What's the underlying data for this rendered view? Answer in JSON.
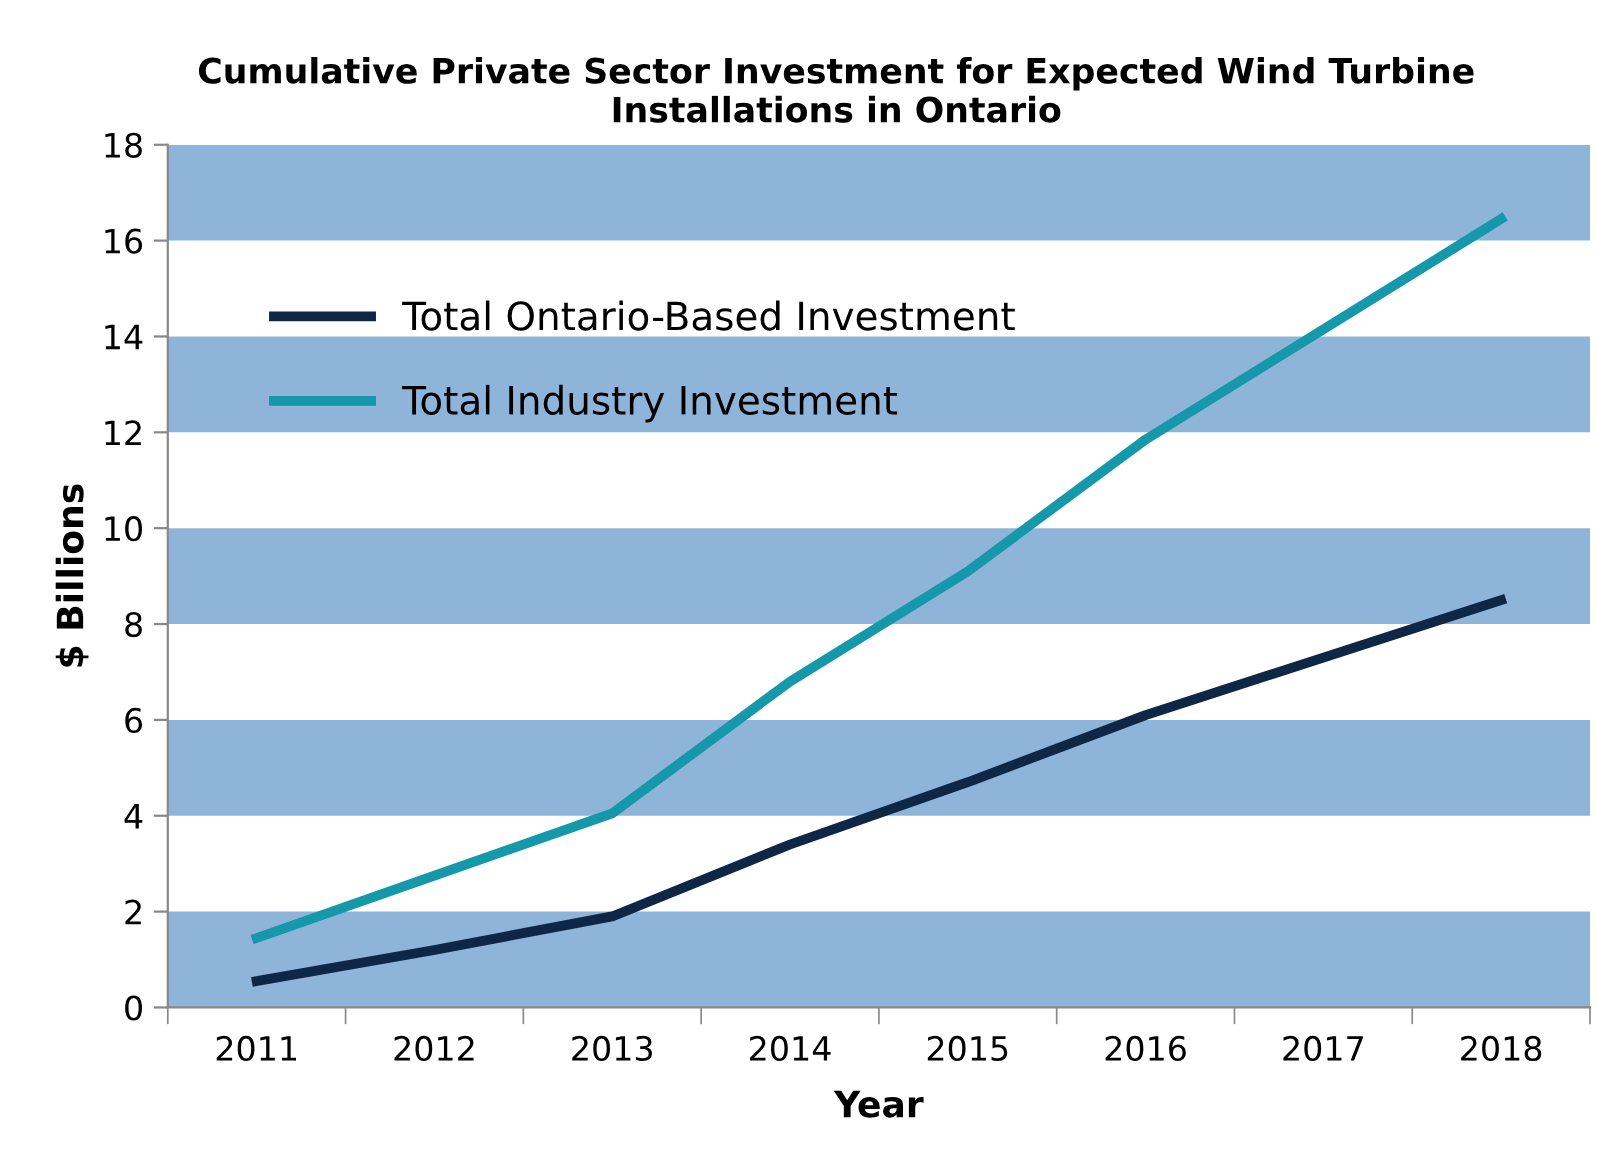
{
  "chart_data": {
    "type": "line",
    "title": "Cumulative Private Sector Investment for Expected Wind Turbine Installations in Ontario",
    "xlabel": "Year",
    "ylabel": "$ Billions",
    "categories": [
      "2011",
      "2012",
      "2013",
      "2014",
      "2015",
      "2016",
      "2017",
      "2018"
    ],
    "series": [
      {
        "name": "Total Ontario-Based Investment",
        "color": "#0f2747",
        "values": [
          0.55,
          1.2,
          1.9,
          3.4,
          4.7,
          6.1,
          7.3,
          8.5
        ]
      },
      {
        "name": "Total Industry Investment",
        "color": "#1598aa",
        "values": [
          1.45,
          2.75,
          4.05,
          6.8,
          9.1,
          11.85,
          14.15,
          16.45
        ]
      }
    ],
    "ylim": [
      0,
      18
    ],
    "yticks": [
      0,
      2,
      4,
      6,
      8,
      10,
      12,
      14,
      16,
      18
    ],
    "grid": false,
    "legend": "top left",
    "marker": "none",
    "line_style": "solid",
    "bands": [
      {
        "axis": "y",
        "from": 0,
        "to": 2,
        "color": "#8fb4d9"
      },
      {
        "axis": "y",
        "from": 4,
        "to": 6,
        "color": "#8fb4d9"
      },
      {
        "axis": "y",
        "from": 8,
        "to": 10,
        "color": "#8fb4d9"
      },
      {
        "axis": "y",
        "from": 12,
        "to": 14,
        "color": "#8fb4d9"
      },
      {
        "axis": "y",
        "from": 16,
        "to": 18,
        "color": "#8fb4d9"
      }
    ]
  }
}
